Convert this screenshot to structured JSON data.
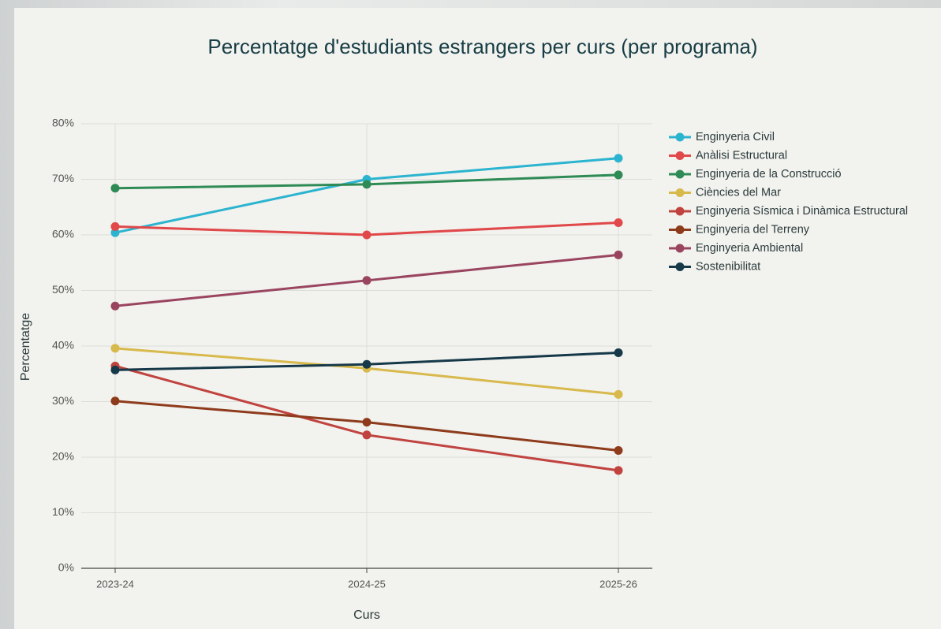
{
  "chart_data": {
    "type": "line",
    "title": "Percentatge d'estudiants estrangers per curs (per programa)",
    "x_label": "Curs",
    "y_label": "Percentatge",
    "categories": [
      "2023-24",
      "2024-25",
      "2025-26"
    ],
    "series": [
      {
        "name": "Enginyeria Civil",
        "color": "#2bb4d0",
        "values": [
          60.4,
          70.0,
          73.8
        ]
      },
      {
        "name": "Anàlisi Estructural",
        "color": "#e0484a",
        "values": [
          61.5,
          60.0,
          62.2
        ]
      },
      {
        "name": "Enginyeria de la Construcció",
        "color": "#2e8b55",
        "values": [
          68.4,
          69.1,
          70.8
        ]
      },
      {
        "name": "Ciències del Mar",
        "color": "#d8b94c",
        "values": [
          39.6,
          36.0,
          31.3
        ]
      },
      {
        "name": "Enginyeria Sísmica i Dinàmica Estructural",
        "color": "#c0433f",
        "values": [
          36.4,
          24.0,
          17.6
        ]
      },
      {
        "name": "Enginyeria del Terreny",
        "color": "#8e3b1c",
        "values": [
          30.1,
          26.3,
          21.2
        ]
      },
      {
        "name": "Enginyeria Ambiental",
        "color": "#9a4560",
        "values": [
          47.2,
          51.8,
          56.4
        ]
      },
      {
        "name": "Sostenibilitat",
        "color": "#16394a",
        "values": [
          35.7,
          36.7,
          38.8
        ]
      }
    ],
    "ylim": [
      0,
      80
    ],
    "yticks": [
      {
        "value": 0,
        "label": "0%"
      },
      {
        "value": 10,
        "label": "10%"
      },
      {
        "value": 20,
        "label": "20%"
      },
      {
        "value": 30,
        "label": "30%"
      },
      {
        "value": 40,
        "label": "40%"
      },
      {
        "value": 50,
        "label": "50%"
      },
      {
        "value": 60,
        "label": "60%"
      },
      {
        "value": 70,
        "label": "70%"
      },
      {
        "value": 80,
        "label": "80%"
      }
    ],
    "grid": true,
    "legend": "right"
  }
}
